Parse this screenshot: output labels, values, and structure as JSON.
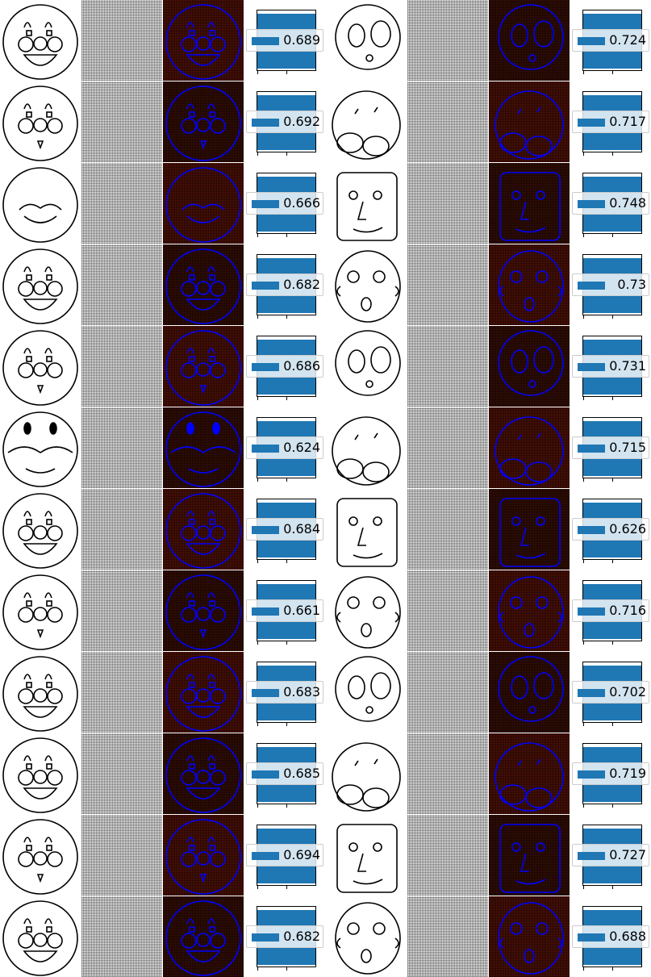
{
  "colors": {
    "bar": "#1f77b4",
    "heatmap_bg": "#5c1408",
    "heatmap_line": "#0000ff",
    "sketch_line": "#000000"
  },
  "rows": [
    {
      "left_score": "0.689",
      "right_score": "0.724"
    },
    {
      "left_score": "0.692",
      "right_score": "0.717"
    },
    {
      "left_score": "0.666",
      "right_score": "0.748"
    },
    {
      "left_score": "0.682",
      "right_score": "0.73"
    },
    {
      "left_score": "0.686",
      "right_score": "0.731"
    },
    {
      "left_score": "0.624",
      "right_score": "0.715"
    },
    {
      "left_score": "0.684",
      "right_score": "0.626"
    },
    {
      "left_score": "0.661",
      "right_score": "0.716"
    },
    {
      "left_score": "0.683",
      "right_score": "0.702"
    },
    {
      "left_score": "0.685",
      "right_score": "0.719"
    },
    {
      "left_score": "0.694",
      "right_score": "0.727"
    },
    {
      "left_score": "0.682",
      "right_score": "0.688"
    }
  ]
}
